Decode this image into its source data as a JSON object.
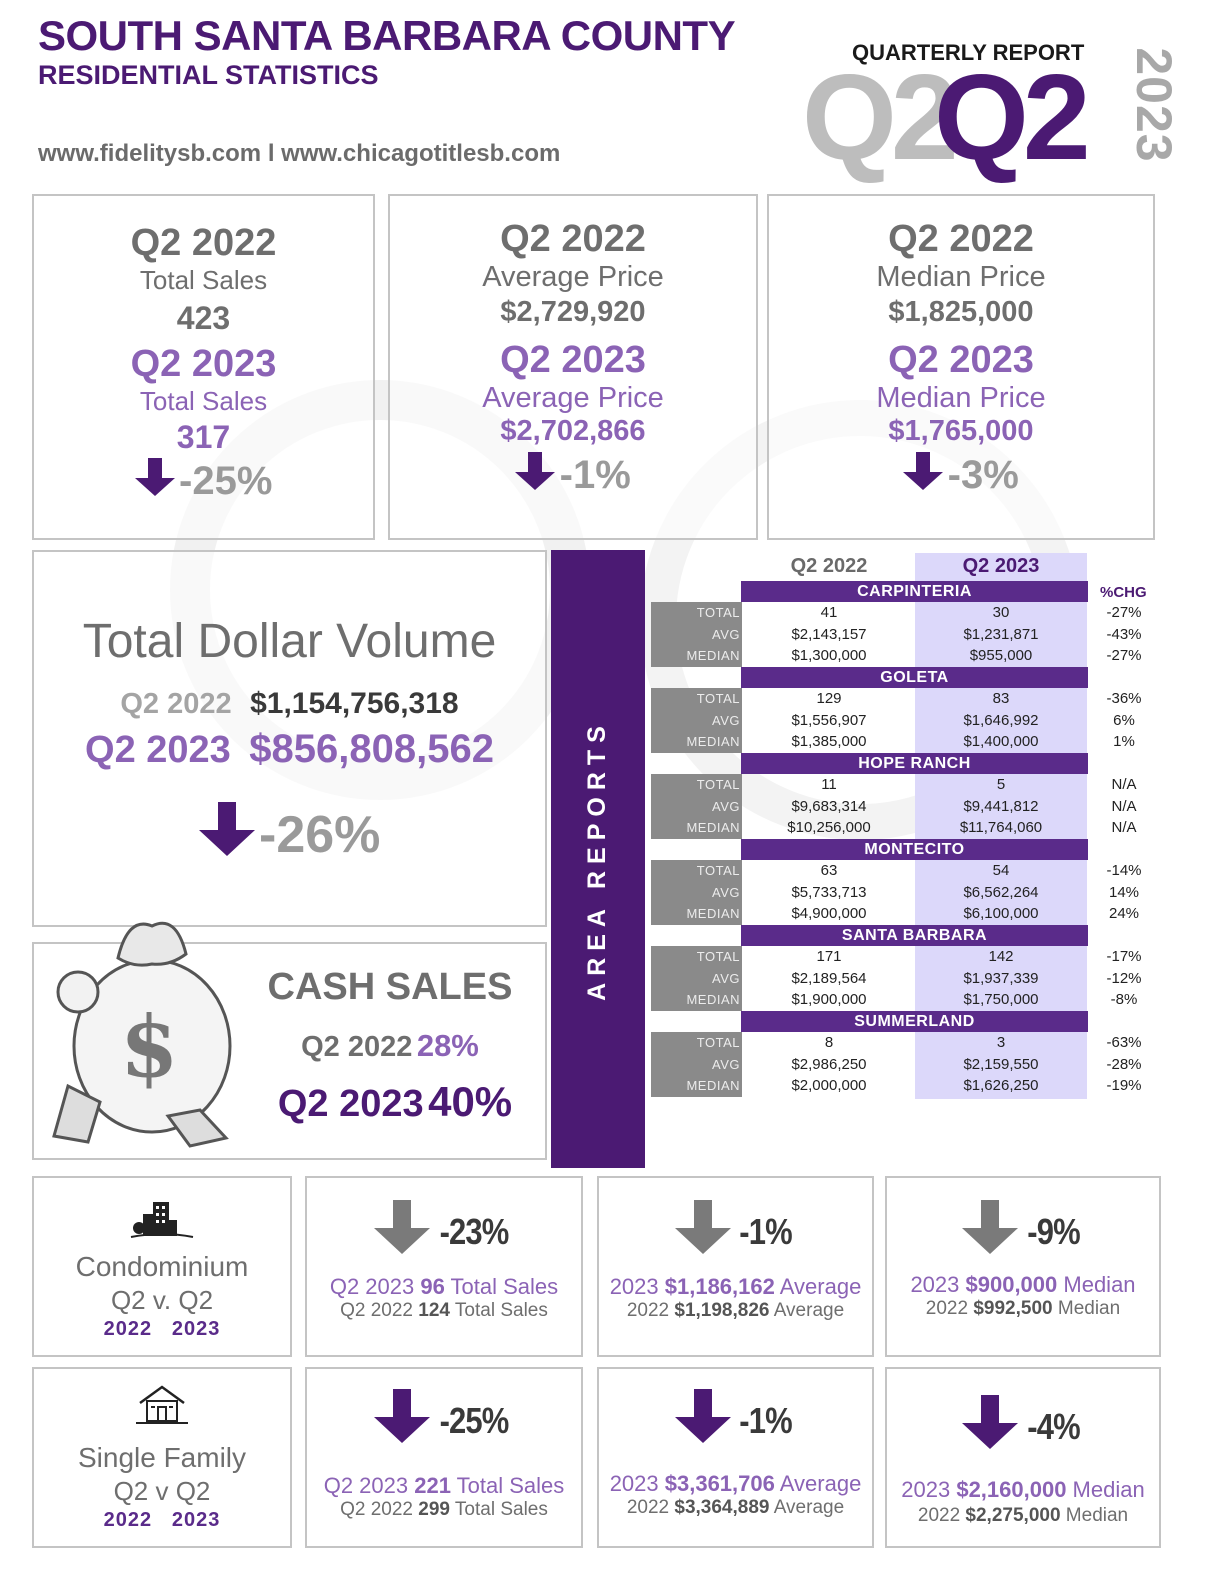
{
  "header": {
    "title": "SOUTH SANTA BARBARA COUNTY",
    "subtitle": "RESIDENTIAL STATISTICS",
    "websites": "www.fidelitysb.com l www.chicagotitlesb.com",
    "report_label": "QUARTERLY REPORT",
    "quarter_ghost": "Q2",
    "quarter": "Q2",
    "year": "2023"
  },
  "stats": [
    {
      "q22": "Q2 2022",
      "label22": "Total Sales",
      "val22": "423",
      "q23": "Q2 2023",
      "label23": "Total Sales",
      "val23": "317",
      "chg": "-25%"
    },
    {
      "q22": "Q2 2022",
      "label22": "Average Price",
      "val22": "$2,729,920",
      "q23": "Q2 2023",
      "label23": "Average  Price",
      "val23": "$2,702,866",
      "chg": "-1%"
    },
    {
      "q22": "Q2 2022",
      "label22": "Median Price",
      "val22": "$1,825,000",
      "q23": "Q2 2023",
      "label23": "Median Price",
      "val23": "$1,765,000",
      "chg": "-3%"
    }
  ],
  "volume": {
    "title": "Total Dollar Volume",
    "q22_label": "Q2 2022",
    "q22_value": "$1,154,756,318",
    "q23_label": "Q2 2023",
    "q23_value": "$856,808,562",
    "chg": "-26%"
  },
  "cash": {
    "title": "CASH SALES",
    "q22_label": "Q2 2022",
    "q22_value": "28%",
    "q23_label": "Q2 2023",
    "q23_value": "40%",
    "bag_symbol": "$"
  },
  "areas": {
    "side_label": "AREA REPORTS",
    "col22": "Q2 2022",
    "col23": "Q2 2023",
    "col_chg": "%CHG",
    "row_labels": [
      "TOTAL",
      "AVG",
      "MEDIAN"
    ],
    "list": [
      {
        "name": "CARPINTERIA",
        "total": [
          "41",
          "30",
          "-27%"
        ],
        "avg": [
          "$2,143,157",
          "$1,231,871",
          "-43%"
        ],
        "median": [
          "$1,300,000",
          "$955,000",
          "-27%"
        ]
      },
      {
        "name": "GOLETA",
        "total": [
          "129",
          "83",
          "-36%"
        ],
        "avg": [
          "$1,556,907",
          "$1,646,992",
          "6%"
        ],
        "median": [
          "$1,385,000",
          "$1,400,000",
          "1%"
        ]
      },
      {
        "name": "HOPE RANCH",
        "total": [
          "11",
          "5",
          "N/A"
        ],
        "avg": [
          "$9,683,314",
          "$9,441,812",
          "N/A"
        ],
        "median": [
          "$10,256,000",
          "$11,764,060",
          "N/A"
        ]
      },
      {
        "name": "MONTECITO",
        "total": [
          "63",
          "54",
          "-14%"
        ],
        "avg": [
          "$5,733,713",
          "$6,562,264",
          "14%"
        ],
        "median": [
          "$4,900,000",
          "$6,100,000",
          "24%"
        ]
      },
      {
        "name": "SANTA BARBARA",
        "total": [
          "171",
          "142",
          "-17%"
        ],
        "avg": [
          "$2,189,564",
          "$1,937,339",
          "-12%"
        ],
        "median": [
          "$1,900,000",
          "$1,750,000",
          "-8%"
        ]
      },
      {
        "name": "SUMMERLAND",
        "total": [
          "8",
          "3",
          "-63%"
        ],
        "avg": [
          "$2,986,250",
          "$2,159,550",
          "-28%"
        ],
        "median": [
          "$2,000,000",
          "$1,626,250",
          "-19%"
        ]
      }
    ]
  },
  "condo": {
    "name": "Condominium",
    "compare": "Q2 v. Q2",
    "year_a": "2022",
    "year_b": "2023",
    "sales": {
      "chg": "-23%",
      "l1_pre": "Q2 2023 ",
      "l1_num": "96",
      "l1_post": " Total Sales",
      "l2_pre": "Q2 2022 ",
      "l2_num": "124",
      "l2_post": " Total Sales"
    },
    "avg": {
      "chg": "-1%",
      "l1_pre": "2023 ",
      "l1_num": "$1,186,162",
      "l1_post": " Average",
      "l2_pre": "2022 ",
      "l2_num": "$1,198,826",
      "l2_post": " Average"
    },
    "median": {
      "chg": "-9%",
      "l1_pre": "2023 ",
      "l1_num": "$900,000",
      "l1_post": " Median",
      "l2_pre": "2022 ",
      "l2_num": "$992,500",
      "l2_post": " Median"
    }
  },
  "sfr": {
    "name": "Single Family",
    "compare": "Q2 v Q2",
    "year_a": "2022",
    "year_b": "2023",
    "sales": {
      "chg": "-25%",
      "l1_pre": "Q2 2023 ",
      "l1_num": "221",
      "l1_post": " Total Sales",
      "l2_pre": "Q2 2022 ",
      "l2_num": "299",
      "l2_post": " Total Sales"
    },
    "avg": {
      "chg": "-1%",
      "l1_pre": "2023 ",
      "l1_num": "$3,361,706",
      "l1_post": " Average",
      "l2_pre": "2022 ",
      "l2_num": "$3,364,889",
      "l2_post": " Average"
    },
    "median": {
      "chg": "-4%",
      "l1_pre": "2023 ",
      "l1_num": "$2,160,000",
      "l1_post": " Median",
      "l2_pre": "2022 ",
      "l2_num": "$2,275,000",
      "l2_post": " Median"
    }
  },
  "colors": {
    "brand_purple": "#4b1a73",
    "light_purple": "#8b63b5",
    "table_highlight": "#dcd8fa",
    "gray": "#6e6e6e"
  }
}
